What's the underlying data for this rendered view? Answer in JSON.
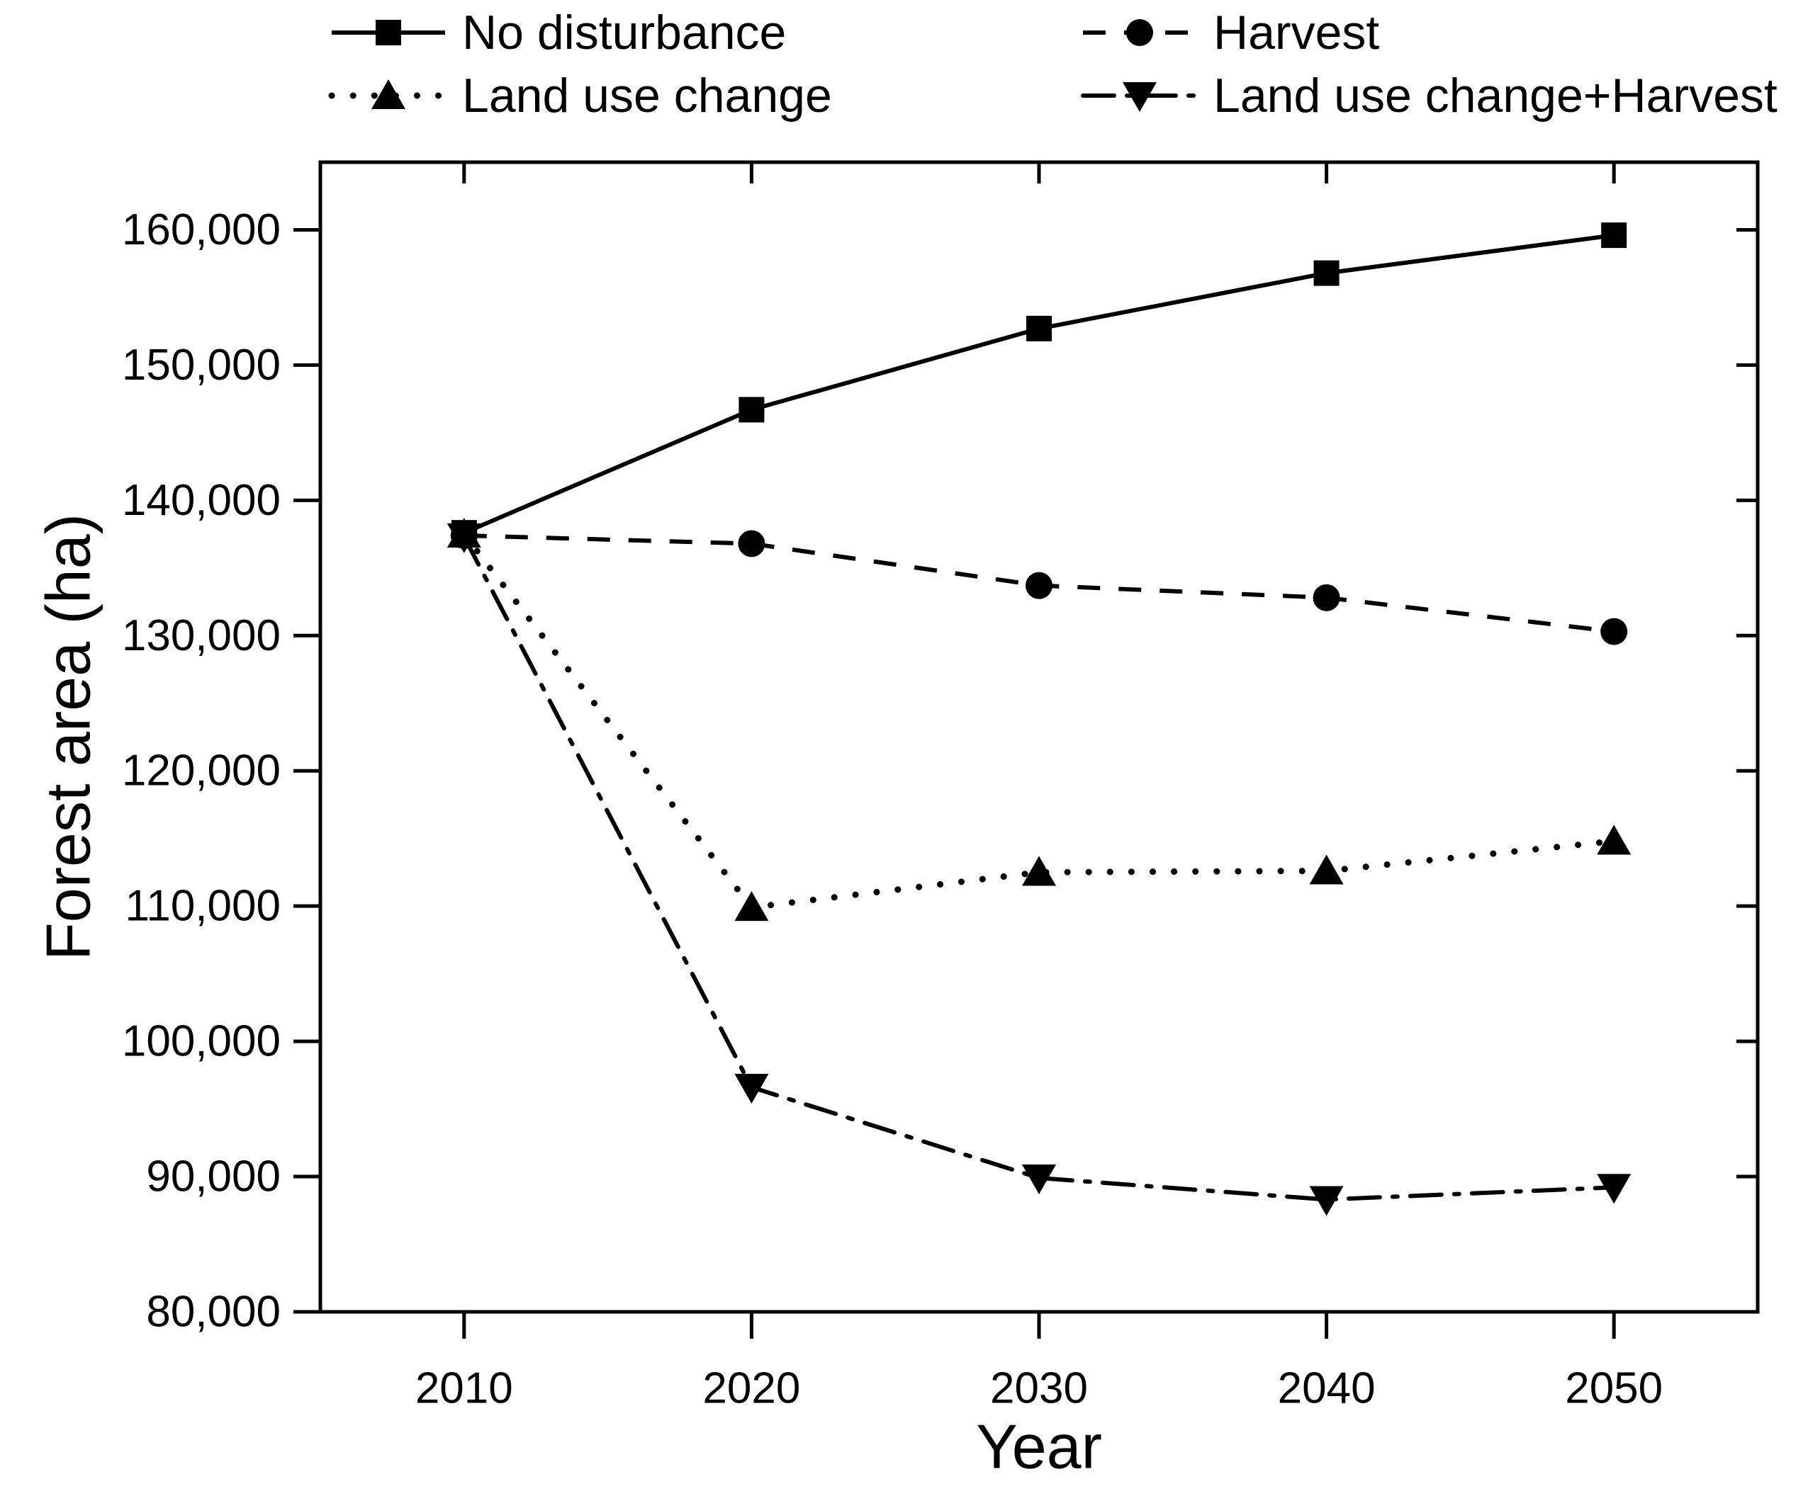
{
  "chart_data": {
    "type": "line",
    "title": "",
    "xlabel": "Year",
    "ylabel": "Forest area (ha)",
    "x": [
      2010,
      2020,
      2030,
      2040,
      2050
    ],
    "xtick_labels": [
      "2010",
      "2020",
      "2030",
      "2040",
      "2050"
    ],
    "xlim": [
      2005,
      2055
    ],
    "ylim": [
      80000,
      165000
    ],
    "yticks": [
      80000,
      90000,
      100000,
      110000,
      120000,
      130000,
      140000,
      150000,
      160000
    ],
    "ytick_labels": [
      "80,000",
      "90,000",
      "100,000",
      "110,000",
      "120,000",
      "130,000",
      "140,000",
      "150,000",
      "160,000"
    ],
    "grid": false,
    "legend_position": "top",
    "colors": {
      "foreground": "#000000",
      "background": "#ffffff"
    },
    "series": [
      {
        "name": "No disturbance",
        "marker": "square",
        "line_style": "solid",
        "values": [
          137600,
          146700,
          152700,
          156800,
          159600
        ]
      },
      {
        "name": "Harvest",
        "marker": "circle",
        "line_style": "dashed",
        "values": [
          137400,
          136800,
          133700,
          132800,
          130300
        ]
      },
      {
        "name": "Land use change",
        "marker": "triangle-up",
        "line_style": "dotted",
        "values": [
          137500,
          109900,
          112500,
          112600,
          114800
        ]
      },
      {
        "name": "Land use change+Harvest",
        "marker": "triangle-down",
        "line_style": "dash-dot",
        "values": [
          137300,
          96600,
          89900,
          88300,
          89200
        ]
      }
    ],
    "legend": {
      "columns": [
        {
          "entries": [
            0,
            2
          ]
        },
        {
          "entries": [
            1,
            3
          ]
        }
      ]
    }
  }
}
